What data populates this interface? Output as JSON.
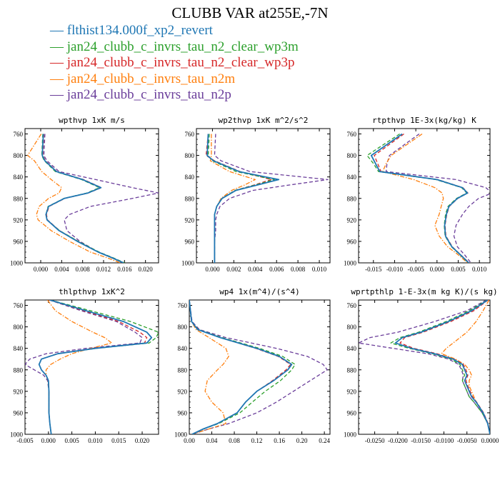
{
  "title": "CLUBB VAR at255E,-7N",
  "colors": {
    "flthist134.000f_xp2_revert": "#1f77b4",
    "jan24_clubb_c_invrs_tau_n2_clear_wp3m": "#2ca02c",
    "jan24_clubb_c_invrs_tau_n2_clear_wp3p": "#d62728",
    "jan24_clubb_c_invrs_tau_n2m": "#ff7f0e",
    "jan24_clubb_c_invrs_tau_n2p": "#6a3d9a"
  },
  "chart_data": [
    {
      "type": "line",
      "title": "wpthvp   1xK m/s",
      "y": [
        760,
        800,
        810,
        830,
        845,
        860,
        870,
        880,
        895,
        910,
        920,
        940,
        960,
        980,
        990,
        1000
      ],
      "yticks": [
        760,
        800,
        840,
        880,
        920,
        960,
        1000
      ],
      "ylim": [
        750,
        1000
      ],
      "xlim": [
        -0.003,
        0.0225
      ],
      "xticks": [
        0.0,
        0.004,
        0.008,
        0.012,
        0.016,
        0.02
      ],
      "xticklabels": [
        "0.000",
        "0.004",
        "0.008",
        "0.012",
        "0.016",
        "0.020"
      ],
      "series": [
        {
          "name": "flthist134.000f_xp2_revert",
          "style": "solid",
          "values": [
            0.0005,
            0.0003,
            0.0008,
            0.003,
            0.008,
            0.0115,
            0.009,
            0.0045,
            0.0015,
            0.001,
            0.0012,
            0.0035,
            0.007,
            0.011,
            0.0135,
            0.0158
          ]
        },
        {
          "name": "jan24_clubb_c_invrs_tau_n2_clear_wp3m",
          "style": "dash",
          "values": [
            0.0004,
            0.0002,
            0.0007,
            0.0028,
            0.0078,
            0.0112,
            0.0088,
            0.0044,
            0.0014,
            0.001,
            0.0012,
            0.0036,
            0.0072,
            0.0112,
            0.0137,
            0.016
          ]
        },
        {
          "name": "jan24_clubb_c_invrs_tau_n2_clear_wp3p",
          "style": "dash",
          "values": [
            0.0006,
            0.0004,
            0.0009,
            0.0031,
            0.0082,
            0.0116,
            0.0091,
            0.0046,
            0.0016,
            0.0011,
            0.0013,
            0.0036,
            0.0071,
            0.011,
            0.0134,
            0.0157
          ]
        },
        {
          "name": "jan24_clubb_c_invrs_tau_n2m",
          "style": "dashdot",
          "values": [
            0.0001,
            -0.0025,
            -0.0012,
            0.0002,
            0.002,
            0.004,
            0.0035,
            0.0015,
            -0.0003,
            -0.0008,
            -0.0005,
            0.002,
            0.0055,
            0.0095,
            0.0125,
            0.0152
          ]
        },
        {
          "name": "jan24_clubb_c_invrs_tau_n2p",
          "style": "dash",
          "values": [
            0.0008,
            0.0006,
            0.0012,
            0.0035,
            0.0105,
            0.0175,
            0.0225,
            0.0175,
            0.0095,
            0.0055,
            0.0045,
            0.005,
            0.0075,
            0.011,
            0.0135,
            0.0158
          ]
        }
      ]
    },
    {
      "type": "line",
      "title": "wp2thvp   1xK m^2/s^2",
      "y": [
        760,
        800,
        810,
        830,
        845,
        855,
        865,
        880,
        895,
        910,
        920,
        940,
        960,
        980,
        990,
        1000
      ],
      "yticks": [
        760,
        800,
        840,
        880,
        920,
        960,
        1000
      ],
      "ylim": [
        750,
        1000
      ],
      "xlim": [
        -0.0015,
        0.011
      ],
      "xticks": [
        0.0,
        0.002,
        0.004,
        0.006,
        0.008,
        0.01
      ],
      "xticklabels": [
        "0.000",
        "0.002",
        "0.004",
        "0.006",
        "0.008",
        "0.010"
      ],
      "series": [
        {
          "name": "flthist134.000f_xp2_revert",
          "style": "solid",
          "values": [
            -0.0004,
            -0.0005,
            0.0001,
            0.0025,
            0.0062,
            0.0042,
            0.0022,
            0.0009,
            0.0004,
            0.0002,
            0.0002,
            0.0002,
            0.0002,
            0.0002,
            0.0002,
            0.0002
          ]
        },
        {
          "name": "jan24_clubb_c_invrs_tau_n2_clear_wp3m",
          "style": "dash",
          "values": [
            -0.0003,
            -0.0004,
            0.0,
            0.0022,
            0.0058,
            0.004,
            0.0021,
            0.0009,
            0.0004,
            0.0002,
            0.0002,
            0.0002,
            0.0002,
            0.0002,
            0.0002,
            0.0002
          ]
        },
        {
          "name": "jan24_clubb_c_invrs_tau_n2_clear_wp3p",
          "style": "dash",
          "values": [
            -0.0004,
            -0.0006,
            0.0002,
            0.0026,
            0.0055,
            0.0039,
            0.0021,
            0.0009,
            0.0004,
            0.0002,
            0.0002,
            0.0002,
            0.0002,
            0.0002,
            0.0002,
            0.0002
          ]
        },
        {
          "name": "jan24_clubb_c_invrs_tau_n2m",
          "style": "dashdot",
          "values": [
            -0.0001,
            -0.0001,
            -0.0002,
            0.0016,
            0.004,
            0.003,
            0.0018,
            0.0008,
            0.0004,
            0.0002,
            0.0002,
            0.0002,
            0.0002,
            0.0002,
            0.0002,
            0.0002
          ]
        },
        {
          "name": "jan24_clubb_c_invrs_tau_n2p",
          "style": "dash",
          "values": [
            0.0003,
            0.0002,
            0.0008,
            0.0035,
            0.0108,
            0.0072,
            0.0038,
            0.0016,
            0.0007,
            0.0004,
            0.0003,
            0.0003,
            0.0002,
            0.0002,
            0.0002,
            0.0002
          ]
        }
      ]
    },
    {
      "type": "line",
      "title": "rtpthvp   1E-3x(kg/kg) K",
      "y": [
        760,
        800,
        815,
        830,
        845,
        860,
        870,
        880,
        895,
        910,
        930,
        950,
        970,
        985,
        1000
      ],
      "yticks": [
        760,
        800,
        840,
        880,
        920,
        960,
        1000
      ],
      "ylim": [
        750,
        1000
      ],
      "xlim": [
        -0.0185,
        0.0125
      ],
      "xticks": [
        -0.015,
        -0.01,
        -0.005,
        0.0,
        0.005,
        0.01
      ],
      "xticklabels": [
        "-0.015",
        "-0.010",
        "-0.005",
        "0.000",
        "0.005",
        "0.010"
      ],
      "series": [
        {
          "name": "flthist134.000f_xp2_revert",
          "style": "solid",
          "values": [
            -0.0082,
            -0.0155,
            -0.0145,
            -0.0135,
            0.0,
            0.006,
            0.0072,
            0.0048,
            0.0028,
            0.0022,
            0.0018,
            0.002,
            0.0035,
            0.0055,
            0.0075
          ]
        },
        {
          "name": "jan24_clubb_c_invrs_tau_n2_clear_wp3m",
          "style": "dash",
          "values": [
            -0.0088,
            -0.0165,
            -0.015,
            -0.0138,
            -0.0003,
            0.0058,
            0.007,
            0.0046,
            0.0026,
            0.002,
            0.0017,
            0.0019,
            0.0034,
            0.0054,
            0.0074
          ]
        },
        {
          "name": "jan24_clubb_c_invrs_tau_n2_clear_wp3p",
          "style": "dash",
          "values": [
            -0.0078,
            -0.0148,
            -0.014,
            -0.0132,
            0.0002,
            0.0061,
            0.0073,
            0.0049,
            0.0029,
            0.0023,
            0.0019,
            0.0021,
            0.0036,
            0.0056,
            0.0076
          ]
        },
        {
          "name": "jan24_clubb_c_invrs_tau_n2m",
          "style": "dashdot",
          "values": [
            -0.0035,
            -0.0108,
            -0.012,
            -0.0128,
            -0.0055,
            -0.0005,
            0.0012,
            0.0015,
            0.001,
            0.0005,
            -0.0005,
            0.0005,
            0.0025,
            0.005,
            0.0072
          ]
        },
        {
          "name": "jan24_clubb_c_invrs_tau_n2p",
          "style": "dash",
          "values": [
            -0.0042,
            -0.0112,
            -0.0118,
            -0.012,
            0.0045,
            0.0115,
            0.013,
            0.0098,
            0.0075,
            0.006,
            0.0045,
            0.004,
            0.0048,
            0.0065,
            0.008
          ]
        }
      ]
    },
    {
      "type": "line",
      "title": "thlpthvp   1xK^2",
      "y": [
        750,
        770,
        790,
        810,
        820,
        830,
        840,
        850,
        860,
        870,
        880,
        890,
        900,
        920,
        940,
        960,
        980,
        1000
      ],
      "yticks": [
        760,
        800,
        840,
        880,
        920,
        960,
        1000
      ],
      "ylim": [
        750,
        1000
      ],
      "xlim": [
        -0.005,
        0.0235
      ],
      "xticks": [
        -0.005,
        0.0,
        0.005,
        0.01,
        0.015,
        0.02
      ],
      "xticklabels": [
        "-0.005",
        "0.000",
        "0.005",
        "0.010",
        "0.015",
        "0.020"
      ],
      "series": [
        {
          "name": "flthist134.000f_xp2_revert",
          "style": "solid",
          "values": [
            0.0003,
            0.008,
            0.016,
            0.021,
            0.022,
            0.021,
            0.01,
            0.002,
            -0.0015,
            -0.002,
            -0.0015,
            -0.0005,
            0.0,
            0.0001,
            0.0001,
            0.0001,
            0.0003,
            0.0006
          ]
        },
        {
          "name": "jan24_clubb_c_invrs_tau_n2_clear_wp3m",
          "style": "dash",
          "values": [
            0.0004,
            0.009,
            0.0175,
            0.0235,
            0.023,
            0.0215,
            0.0102,
            0.002,
            -0.0015,
            -0.002,
            -0.0015,
            -0.0005,
            0.0,
            0.0001,
            0.0001,
            0.0001,
            0.0003,
            0.0006
          ]
        },
        {
          "name": "jan24_clubb_c_invrs_tau_n2_clear_wp3p",
          "style": "dash",
          "values": [
            0.0002,
            0.0075,
            0.015,
            0.0195,
            0.021,
            0.0205,
            0.0098,
            0.0018,
            -0.0015,
            -0.002,
            -0.0015,
            -0.0005,
            0.0,
            0.0001,
            0.0001,
            0.0001,
            0.0003,
            0.0006
          ]
        },
        {
          "name": "jan24_clubb_c_invrs_tau_n2m",
          "style": "dashdot",
          "values": [
            -0.0002,
            0.0015,
            0.005,
            0.0095,
            0.012,
            0.0135,
            0.009,
            0.005,
            0.0025,
            0.0005,
            -0.0005,
            -0.0005,
            -0.0001,
            0.0001,
            0.0001,
            0.0001,
            0.0003,
            0.0006
          ]
        },
        {
          "name": "jan24_clubb_c_invrs_tau_n2p",
          "style": "dash",
          "values": [
            0.0002,
            0.007,
            0.0145,
            0.0185,
            0.02,
            0.0195,
            0.008,
            -0.0005,
            -0.004,
            -0.005,
            -0.003,
            -0.001,
            -0.0002,
            0.0001,
            0.0001,
            0.0001,
            0.0003,
            0.0006
          ]
        }
      ]
    },
    {
      "type": "line",
      "title": "wp4   1x(m^4)/(s^4)",
      "y": [
        750,
        790,
        805,
        820,
        840,
        855,
        870,
        880,
        900,
        920,
        940,
        960,
        980,
        990,
        1000
      ],
      "yticks": [
        760,
        800,
        840,
        880,
        920,
        960,
        1000
      ],
      "ylim": [
        750,
        1000
      ],
      "xlim": [
        0.0,
        0.25
      ],
      "xticks": [
        0.0,
        0.04,
        0.08,
        0.12,
        0.16,
        0.2,
        0.24
      ],
      "xticklabels": [
        "0.00",
        "0.04",
        "0.08",
        "0.12",
        "0.16",
        "0.20",
        "0.24"
      ],
      "series": [
        {
          "name": "flthist134.000f_xp2_revert",
          "style": "solid",
          "values": [
            0.0,
            0.004,
            0.015,
            0.055,
            0.12,
            0.16,
            0.182,
            0.175,
            0.15,
            0.12,
            0.1,
            0.085,
            0.05,
            0.025,
            0.005
          ]
        },
        {
          "name": "jan24_clubb_c_invrs_tau_n2_clear_wp3m",
          "style": "dash",
          "values": [
            0.0,
            0.004,
            0.016,
            0.058,
            0.125,
            0.166,
            0.188,
            0.182,
            0.162,
            0.135,
            0.112,
            0.09,
            0.052,
            0.026,
            0.005
          ]
        },
        {
          "name": "jan24_clubb_c_invrs_tau_n2_clear_wp3p",
          "style": "dash",
          "values": [
            0.0,
            0.004,
            0.015,
            0.055,
            0.118,
            0.158,
            0.18,
            0.172,
            0.148,
            0.12,
            0.1,
            0.085,
            0.05,
            0.025,
            0.005
          ]
        },
        {
          "name": "jan24_clubb_c_invrs_tau_n2m",
          "style": "dashdot",
          "values": [
            0.0,
            0.004,
            0.012,
            0.035,
            0.065,
            0.07,
            0.06,
            0.05,
            0.032,
            0.028,
            0.04,
            0.06,
            0.065,
            0.035,
            0.005
          ]
        },
        {
          "name": "jan24_clubb_c_invrs_tau_n2p",
          "style": "dash",
          "values": [
            0.0,
            0.005,
            0.018,
            0.065,
            0.155,
            0.21,
            0.238,
            0.245,
            0.215,
            0.185,
            0.155,
            0.12,
            0.07,
            0.035,
            0.005
          ]
        }
      ]
    },
    {
      "type": "line",
      "title": "wprtpthlp   1-E-3x(m kg K)/(s kg)",
      "y": [
        750,
        770,
        790,
        810,
        820,
        830,
        840,
        850,
        860,
        870,
        880,
        890,
        900,
        910,
        920,
        930,
        940,
        960,
        980,
        1000
      ],
      "yticks": [
        760,
        800,
        840,
        880,
        920,
        960,
        1000
      ],
      "ylim": [
        750,
        1000
      ],
      "xlim": [
        -0.0285,
        0.0
      ],
      "xticks": [
        -0.025,
        -0.02,
        -0.015,
        -0.01,
        -0.005,
        0.0
      ],
      "xticklabels": [
        "-0.0250",
        "-0.0200",
        "-0.0150",
        "-0.0100",
        "-0.0050",
        "0.0000"
      ],
      "series": [
        {
          "name": "flthist134.000f_xp2_revert",
          "style": "solid",
          "values": [
            -0.0005,
            -0.004,
            -0.009,
            -0.015,
            -0.019,
            -0.0205,
            -0.017,
            -0.012,
            -0.008,
            -0.006,
            -0.0055,
            -0.005,
            -0.0055,
            -0.005,
            -0.0045,
            -0.004,
            -0.003,
            -0.0015,
            -0.0005,
            0.0
          ]
        },
        {
          "name": "jan24_clubb_c_invrs_tau_n2_clear_wp3m",
          "style": "dash",
          "values": [
            -0.0006,
            -0.0045,
            -0.0095,
            -0.0155,
            -0.0195,
            -0.0215,
            -0.0175,
            -0.0125,
            -0.0085,
            -0.0065,
            -0.006,
            -0.0055,
            -0.006,
            -0.0055,
            -0.005,
            -0.0045,
            -0.0035,
            -0.0017,
            -0.0005,
            0.0
          ]
        },
        {
          "name": "jan24_clubb_c_invrs_tau_n2_clear_wp3p",
          "style": "dash",
          "values": [
            -0.0004,
            -0.0035,
            -0.0085,
            -0.0145,
            -0.0185,
            -0.0195,
            -0.0165,
            -0.0115,
            -0.0078,
            -0.0058,
            -0.0052,
            -0.0048,
            -0.0052,
            -0.0048,
            -0.0043,
            -0.0038,
            -0.0029,
            -0.0014,
            -0.0004,
            0.0
          ]
        },
        {
          "name": "jan24_clubb_c_invrs_tau_n2m",
          "style": "dashdot",
          "values": [
            -0.0002,
            -0.0015,
            -0.003,
            -0.005,
            -0.0065,
            -0.008,
            -0.0095,
            -0.0105,
            -0.0075,
            -0.0055,
            -0.0045,
            -0.004,
            -0.0045,
            -0.0045,
            -0.004,
            -0.0035,
            -0.003,
            -0.0015,
            -0.0005,
            0.0
          ]
        },
        {
          "name": "jan24_clubb_c_invrs_tau_n2p",
          "style": "dash",
          "values": [
            -0.0008,
            -0.005,
            -0.012,
            -0.02,
            -0.026,
            -0.0285,
            -0.021,
            -0.0135,
            -0.009,
            -0.0068,
            -0.0062,
            -0.0058,
            -0.006,
            -0.0055,
            -0.005,
            -0.0045,
            -0.0035,
            -0.0017,
            -0.0005,
            0.0
          ]
        }
      ]
    }
  ]
}
